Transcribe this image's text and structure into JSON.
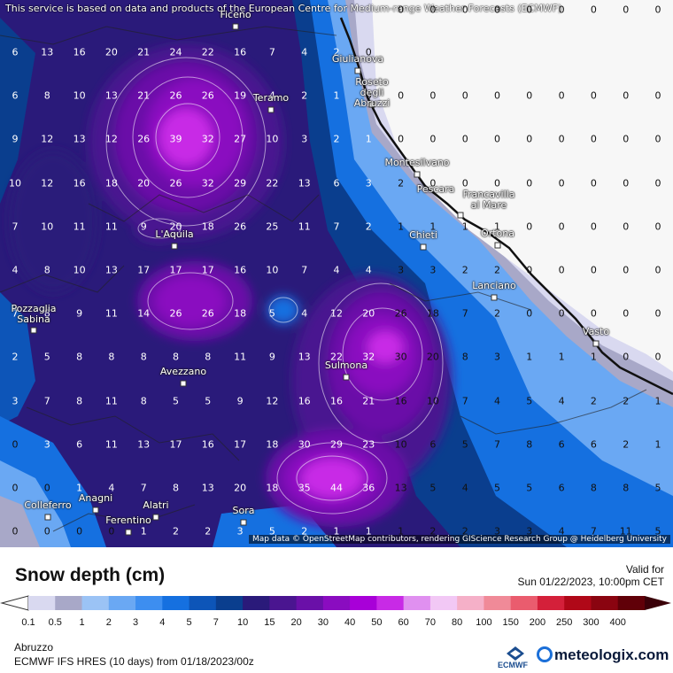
{
  "attribution_top": "This service is based on data and products of the European Centre for Medium-range Weather Forecasts (ECMWF)",
  "attribution_bottom": "Map data © OpenStreetMap contributors, rendering GIScience Research Group @ Heidelberg University",
  "legend": {
    "title": "Snow depth (cm)",
    "valid_label": "Valid for",
    "valid_date": "Sun 01/22/2023, 10:00pm CET",
    "ticks": [
      "0.1",
      "0.5",
      "1",
      "2",
      "3",
      "4",
      "5",
      "7",
      "10",
      "15",
      "20",
      "30",
      "40",
      "50",
      "60",
      "70",
      "80",
      "100",
      "150",
      "200",
      "250",
      "300",
      "400"
    ],
    "colors": [
      "#d9d9f0",
      "#a8a8c8",
      "#9bc3f5",
      "#6aa8f3",
      "#3d8ef0",
      "#1570e0",
      "#0d55b8",
      "#0a3e8e",
      "#2a1a7a",
      "#4a1590",
      "#6a10a8",
      "#8a0cc0",
      "#a800d8",
      "#c82ae6",
      "#e090f0",
      "#f2c8f5",
      "#f5b0c8",
      "#f08a98",
      "#ea5c6e",
      "#d4203a",
      "#b00818",
      "#8a0410",
      "#600008"
    ]
  },
  "footer": {
    "region": "Abruzzo",
    "model": "ECMWF IFS HRES (10 days) from 01/18/2023/00z",
    "ecmwf_logo_text": "ECMWF",
    "brand": "meteologix.com"
  },
  "cities": [
    {
      "name": "Ficeno"
    },
    {
      "name": "Giulianova"
    },
    {
      "name": "Roseto degli Abruzzi"
    },
    {
      "name": "Teramo"
    },
    {
      "name": "Montesilvano"
    },
    {
      "name": "Pescara"
    },
    {
      "name": "Francavilla al Mare"
    },
    {
      "name": "Chieti"
    },
    {
      "name": "Ortona"
    },
    {
      "name": "L'Aquila"
    },
    {
      "name": "Lanciano"
    },
    {
      "name": "Pozzaglia Sabina"
    },
    {
      "name": "Vasto"
    },
    {
      "name": "Avezzano"
    },
    {
      "name": "Sulmona"
    },
    {
      "name": "Anagni"
    },
    {
      "name": "Alatri"
    },
    {
      "name": "Colleferro"
    },
    {
      "name": "Sora"
    },
    {
      "name": "Ferentino"
    }
  ],
  "grid_values": [
    [
      "6",
      "13",
      "16",
      "20",
      "21",
      "24",
      "22",
      "16",
      "7",
      "4",
      "2",
      "0",
      "0",
      "0",
      "0",
      "0",
      "0",
      "0",
      "0",
      "0",
      "0"
    ],
    [
      "6",
      "8",
      "10",
      "13",
      "21",
      "26",
      "26",
      "19",
      "4",
      "2",
      "1",
      "0",
      "0",
      "0",
      "0",
      "0",
      "0",
      "0",
      "0",
      "0",
      "0"
    ],
    [
      "9",
      "12",
      "13",
      "12",
      "26",
      "39",
      "32",
      "27",
      "10",
      "3",
      "2",
      "1",
      "0",
      "0",
      "0",
      "0",
      "0",
      "0",
      "0",
      "0",
      "0"
    ],
    [
      "10",
      "12",
      "16",
      "18",
      "20",
      "26",
      "32",
      "29",
      "22",
      "13",
      "6",
      "3",
      "2",
      "0",
      "0",
      "0",
      "0",
      "0",
      "0",
      "0",
      "0"
    ],
    [
      "7",
      "10",
      "11",
      "11",
      "9",
      "20",
      "18",
      "26",
      "25",
      "11",
      "7",
      "2",
      "1",
      "1",
      "1",
      "1",
      "0",
      "0",
      "0",
      "0",
      "0"
    ],
    [
      "4",
      "8",
      "10",
      "13",
      "17",
      "17",
      "17",
      "16",
      "10",
      "7",
      "4",
      "4",
      "3",
      "3",
      "2",
      "2",
      "0",
      "0",
      "0",
      "0",
      "0"
    ],
    [
      "7",
      "8",
      "9",
      "11",
      "14",
      "26",
      "26",
      "18",
      "5",
      "4",
      "12",
      "20",
      "26",
      "18",
      "7",
      "2",
      "0",
      "0",
      "0",
      "0",
      "0"
    ],
    [
      "2",
      "5",
      "8",
      "8",
      "8",
      "8",
      "8",
      "11",
      "9",
      "13",
      "22",
      "32",
      "30",
      "20",
      "8",
      "3",
      "1",
      "1",
      "1",
      "0",
      "0"
    ],
    [
      "3",
      "7",
      "8",
      "11",
      "8",
      "5",
      "5",
      "9",
      "12",
      "16",
      "16",
      "21",
      "16",
      "10",
      "7",
      "4",
      "5",
      "4",
      "2",
      "2",
      "1"
    ],
    [
      "0",
      "3",
      "6",
      "11",
      "13",
      "17",
      "16",
      "17",
      "18",
      "30",
      "29",
      "23",
      "10",
      "6",
      "5",
      "7",
      "8",
      "6",
      "6",
      "2",
      "1"
    ],
    [
      "0",
      "0",
      "1",
      "4",
      "7",
      "8",
      "13",
      "20",
      "18",
      "35",
      "44",
      "36",
      "13",
      "5",
      "4",
      "5",
      "5",
      "6",
      "8",
      "8",
      "5"
    ],
    [
      "0",
      "0",
      "0",
      "0",
      "1",
      "2",
      "2",
      "3",
      "5",
      "2",
      "1",
      "1",
      "1",
      "2",
      "2",
      "3",
      "3",
      "4",
      "7",
      "11",
      "5"
    ]
  ]
}
